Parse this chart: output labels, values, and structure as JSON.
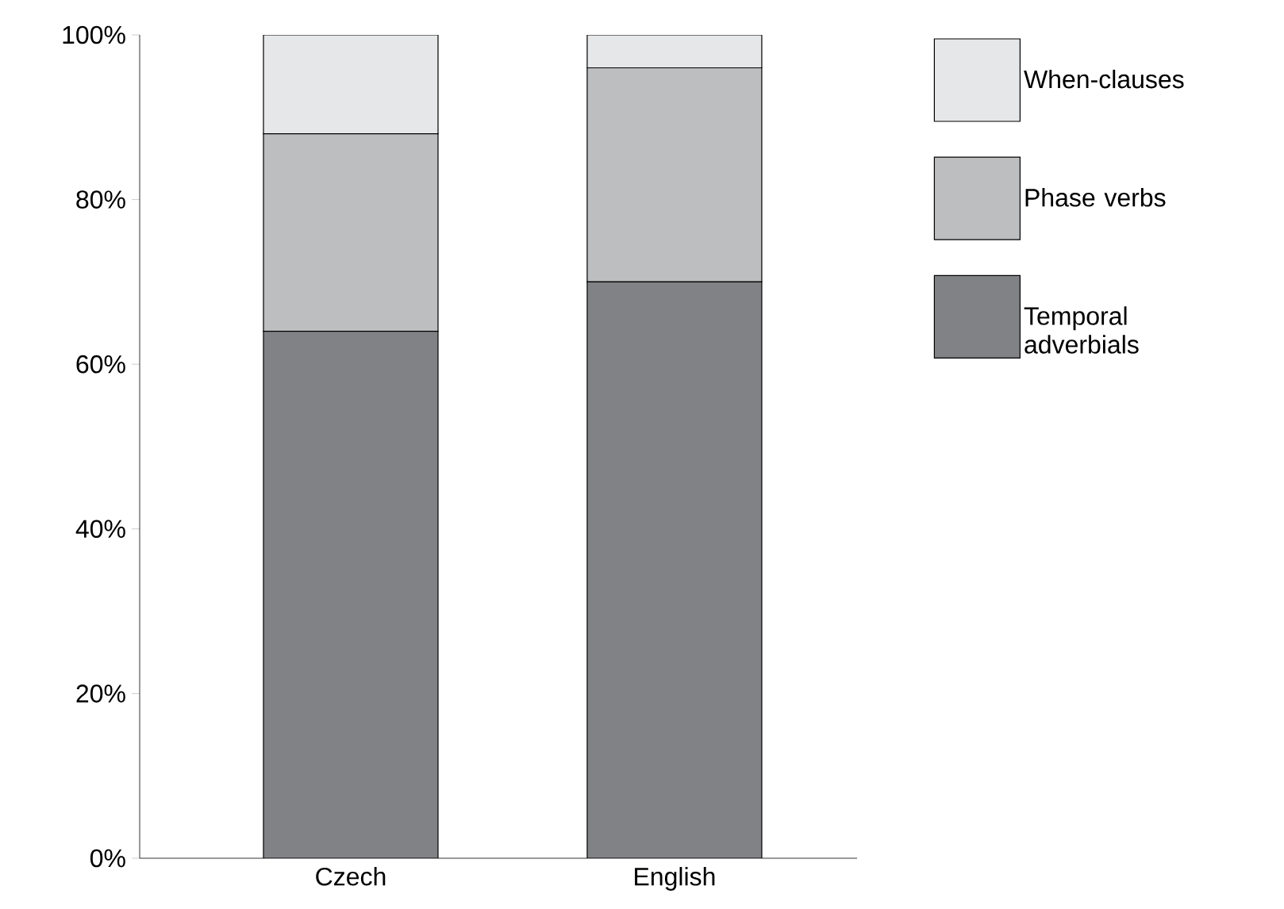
{
  "chart_data": {
    "type": "bar",
    "stacked": true,
    "categories": [
      "Czech",
      "English"
    ],
    "series": [
      {
        "name": "Temporal adverbials",
        "color": "#808285",
        "values": [
          64,
          70
        ]
      },
      {
        "name": "Phase verbs",
        "color": "#bcbec0",
        "values": [
          24,
          26
        ]
      },
      {
        "name": "When-clauses",
        "color": "#e6e7e8",
        "values": [
          12,
          4
        ]
      }
    ],
    "ylim": [
      0,
      100
    ],
    "yticks": [
      {
        "value": 0,
        "label": "0%"
      },
      {
        "value": 20,
        "label": "20%"
      },
      {
        "value": 40,
        "label": "40%"
      },
      {
        "value": 60,
        "label": "60%"
      },
      {
        "value": 80,
        "label": "80%"
      },
      {
        "value": 100,
        "label": "100%"
      }
    ],
    "grid": false,
    "legend": "top right"
  }
}
